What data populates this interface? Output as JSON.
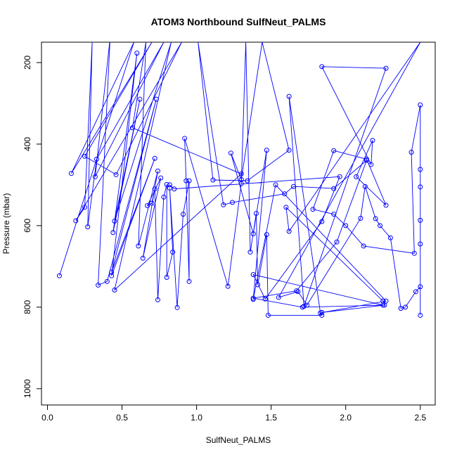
{
  "chart_data": {
    "type": "line",
    "title": "ATOM3 Northbound SulfNeut_PALMS",
    "xlabel": "SulfNeut_PALMS",
    "ylabel": "Pressure (mbar)",
    "xlim": [
      -0.04,
      2.6
    ],
    "ylim": [
      1040,
      150
    ],
    "y_reversed": true,
    "x_ticks": [
      "0.0",
      "0.5",
      "1.0",
      "1.5",
      "2.0",
      "2.5"
    ],
    "x_tick_values": [
      0,
      0.5,
      1,
      1.5,
      2,
      2.5
    ],
    "y_ticks": [
      "200",
      "400",
      "600",
      "800",
      "1000"
    ],
    "y_tick_values": [
      200,
      400,
      600,
      800,
      1000
    ],
    "grid": false,
    "legend": "none",
    "series": [
      {
        "color": "#0000ff",
        "marker": "open-circle",
        "points": [
          [
            0.08,
            723
          ],
          [
            0.58,
            150
          ],
          [
            0.16,
            472
          ],
          [
            0.7,
            150
          ],
          [
            0.25,
            430
          ],
          [
            0.46,
            475
          ],
          [
            0.9,
            150
          ],
          [
            0.19,
            588
          ],
          [
            0.25,
            555
          ],
          [
            0.3,
            150
          ],
          [
            0.27,
            603
          ],
          [
            0.33,
            437
          ],
          [
            0.78,
            150
          ],
          [
            0.32,
            480
          ],
          [
            0.42,
            140
          ],
          [
            0.34,
            746
          ],
          [
            0.4,
            737
          ],
          [
            0.73,
            290
          ],
          [
            0.43,
            714
          ],
          [
            0.72,
            435
          ],
          [
            0.43,
            723
          ],
          [
            0.6,
            177
          ],
          [
            0.44,
            617
          ],
          [
            0.62,
            290
          ],
          [
            0.45,
            589
          ],
          [
            0.83,
            150
          ],
          [
            0.45,
            758
          ],
          [
            1.3,
            473
          ],
          [
            0.57,
            360
          ],
          [
            0.66,
            150
          ],
          [
            0.61,
            650
          ],
          [
            0.74,
            466
          ],
          [
            0.64,
            680
          ],
          [
            0.76,
            483
          ],
          [
            0.67,
            551
          ],
          [
            0.7,
            545
          ],
          [
            0.72,
            510
          ],
          [
            0.74,
            782
          ],
          [
            0.78,
            530
          ],
          [
            0.8,
            499
          ],
          [
            0.8,
            727
          ],
          [
            0.84,
            665
          ],
          [
            0.82,
            508
          ],
          [
            0.87,
            801
          ],
          [
            0.91,
            572
          ],
          [
            0.95,
            490
          ],
          [
            0.95,
            737
          ],
          [
            0.93,
            490
          ],
          [
            0.92,
            386
          ],
          [
            1.21,
            749
          ],
          [
            1.3,
            497
          ],
          [
            1.33,
            150
          ],
          [
            1.36,
            665
          ],
          [
            1.4,
            570
          ],
          [
            1.41,
            745
          ],
          [
            1.47,
            622
          ],
          [
            1.48,
            820
          ],
          [
            1.84,
            820
          ],
          [
            1.84,
            813
          ],
          [
            2.26,
            795
          ],
          [
            2.25,
            785
          ],
          [
            1.6,
            555
          ],
          [
            1.62,
            614
          ],
          [
            2.5,
            150
          ],
          [
            1.55,
            776
          ],
          [
            1.68,
            762
          ],
          [
            1.74,
            795
          ],
          [
            2.1,
            582
          ],
          [
            2.13,
            504
          ],
          [
            2.2,
            583
          ],
          [
            2.23,
            600
          ],
          [
            2.3,
            630
          ],
          [
            2.37,
            803
          ],
          [
            2.4,
            800
          ],
          [
            2.47,
            762
          ],
          [
            2.5,
            750
          ],
          [
            2.5,
            820
          ],
          [
            2.5,
            645
          ],
          [
            2.5,
            587
          ],
          [
            2.5,
            505
          ],
          [
            2.5,
            462
          ],
          [
            2.5,
            304
          ],
          [
            2.44,
            420
          ],
          [
            2.46,
            668
          ],
          [
            2.12,
            650
          ],
          [
            2.0,
            600
          ],
          [
            1.92,
            572
          ],
          [
            1.78,
            560
          ],
          [
            1.92,
            416
          ],
          [
            2.14,
            437
          ],
          [
            2.27,
            550
          ],
          [
            2.07,
            480
          ],
          [
            2.18,
            391
          ],
          [
            2.17,
            450
          ],
          [
            1.84,
            210
          ],
          [
            2.27,
            214
          ],
          [
            1.72,
            798
          ],
          [
            1.62,
            283
          ],
          [
            1.83,
            814
          ],
          [
            2.27,
            785
          ],
          [
            1.53,
            500
          ],
          [
            1.38,
            781
          ],
          [
            1.47,
            415
          ],
          [
            1.38,
            620
          ],
          [
            1.23,
            422
          ],
          [
            1.3,
            487
          ],
          [
            1.44,
            150
          ],
          [
            1.62,
            415
          ],
          [
            1.34,
            490
          ],
          [
            1.11,
            488
          ],
          [
            1.01,
            150
          ],
          [
            1.18,
            549
          ],
          [
            1.24,
            543
          ],
          [
            1.59,
            522
          ],
          [
            1.65,
            504
          ],
          [
            1.92,
            509
          ],
          [
            2.14,
            440
          ],
          [
            1.94,
            640
          ],
          [
            1.67,
            760
          ],
          [
            1.38,
            778
          ],
          [
            1.71,
            800
          ],
          [
            2.25,
            795
          ],
          [
            1.38,
            720
          ],
          [
            1.46,
            780
          ],
          [
            1.84,
            590
          ],
          [
            1.96,
            480
          ],
          [
            0.85,
            510
          ],
          [
            0.82,
            500
          ]
        ]
      }
    ]
  }
}
